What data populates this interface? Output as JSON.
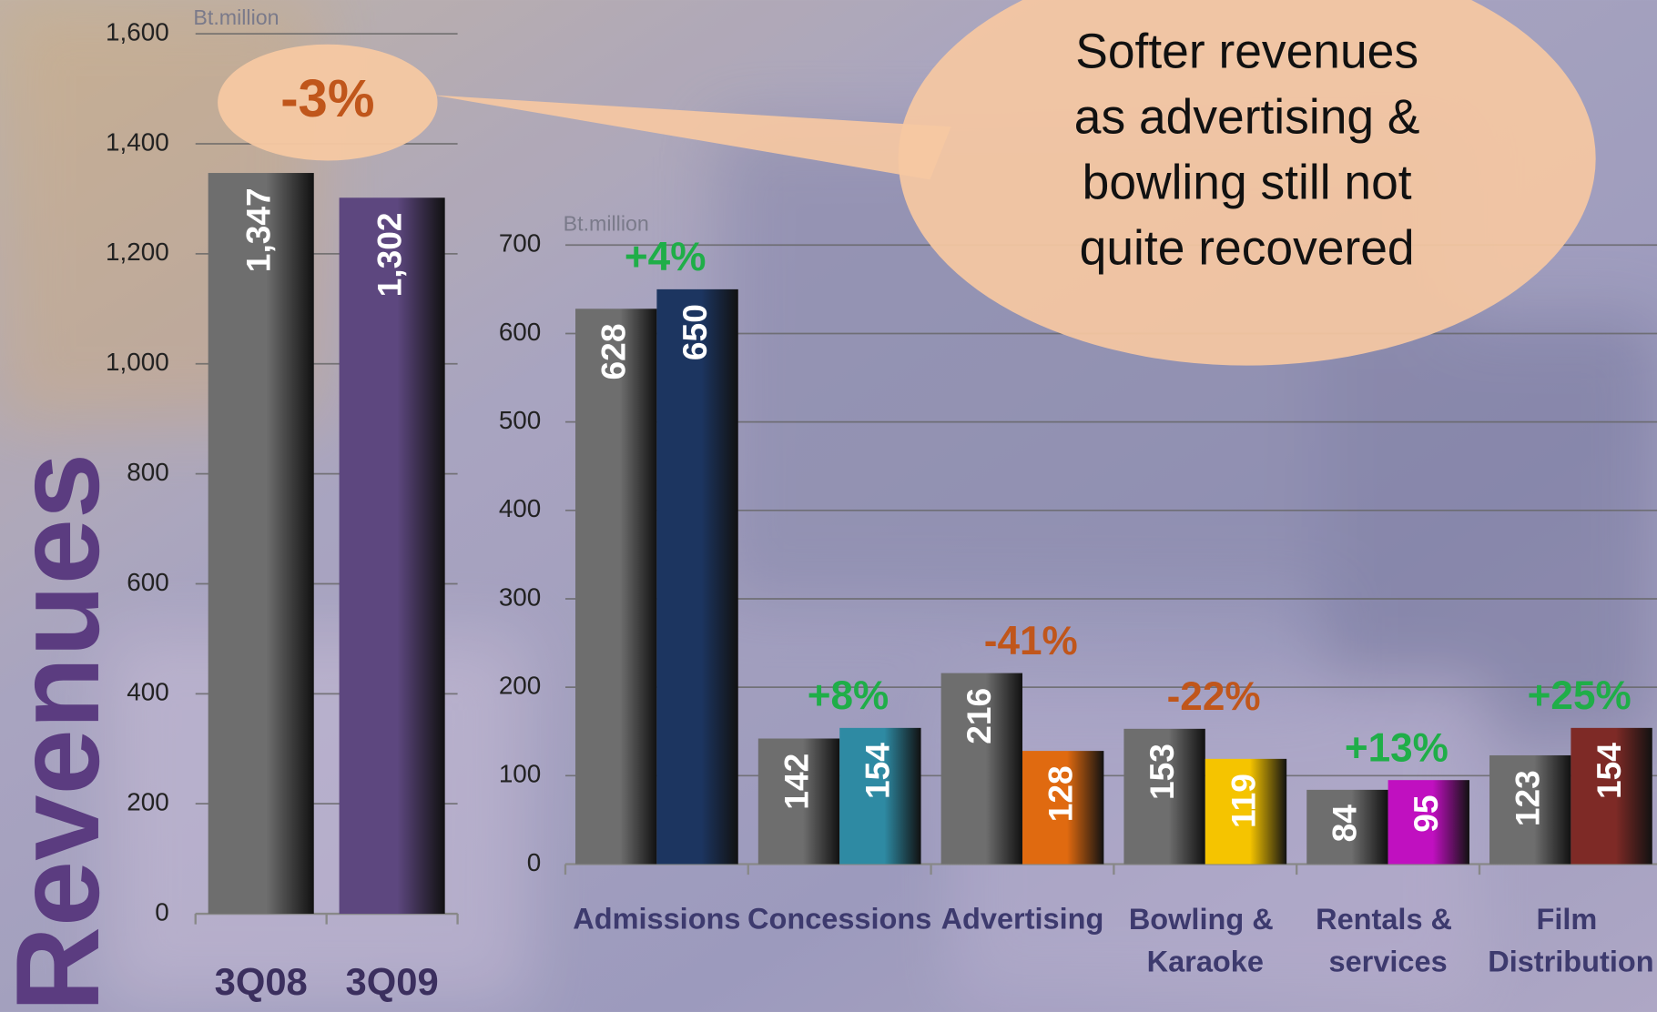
{
  "title": "Revenues",
  "callout_lines": [
    "Softer revenues",
    "as advertising &",
    "bowling still not",
    "quite recovered"
  ],
  "chart_data": [
    {
      "type": "bar",
      "unit": "Bt.million",
      "categories": [
        "3Q08",
        "3Q09"
      ],
      "values": [
        1347,
        1302
      ],
      "value_labels": [
        "1,347",
        "1,302"
      ],
      "colors": [
        "#6e6e6e",
        "#5d477f"
      ],
      "ylim": [
        0,
        1600
      ],
      "yticks": [
        0,
        200,
        400,
        600,
        800,
        {
          "value": 1000,
          "label": "1,000"
        },
        {
          "value": 1200,
          "label": "1,200"
        },
        {
          "value": 1400,
          "label": "1,400"
        },
        {
          "value": 1600,
          "label": "1,600"
        }
      ],
      "grid": true,
      "annotation": "-3%"
    },
    {
      "type": "grouped_bar",
      "unit": "Bt.million",
      "categories": [
        "Admissions",
        "Concessions",
        "Advertising",
        "Bowling & Karaoke",
        "Rentals & services",
        "Film Distribution"
      ],
      "series": [
        {
          "color": "#6e6e6e",
          "values": [
            628,
            142,
            216,
            153,
            84,
            123
          ]
        },
        {
          "colors": [
            "#1c3560",
            "#2e8aa3",
            "#e06a10",
            "#f5c400",
            "#c010c0",
            "#7e2a26"
          ],
          "values": [
            650,
            154,
            128,
            119,
            95,
            154
          ]
        }
      ],
      "ylim": [
        0,
        700
      ],
      "yticks": [
        0,
        100,
        200,
        300,
        400,
        500,
        600,
        700
      ],
      "grid": true,
      "annotations": [
        "+4%",
        "+8%",
        "-41%",
        "-22%",
        "+13%",
        "+25%"
      ],
      "annotation_colors": [
        "#1fae48",
        "#1fae48",
        "#c0561b",
        "#c0561b",
        "#1fae48",
        "#1fae48"
      ]
    }
  ]
}
